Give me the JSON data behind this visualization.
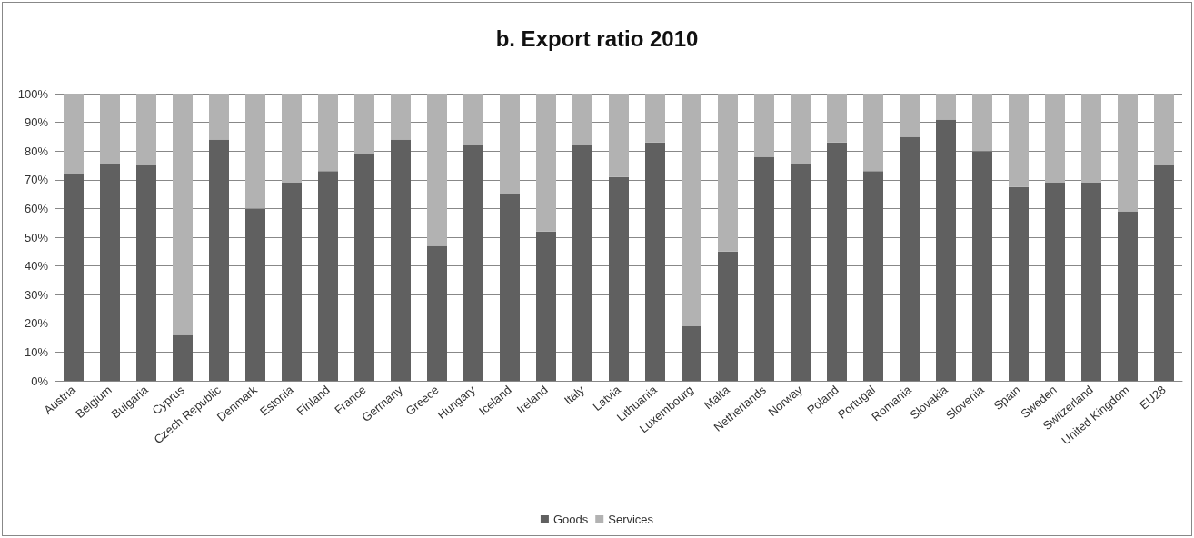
{
  "chart_data": {
    "type": "bar",
    "title": "b. Export ratio 2010",
    "stacked": true,
    "categories": [
      "Austria",
      "Belgium",
      "Bulgaria",
      "Cyprus",
      "Czech Republic",
      "Denmark",
      "Estonia",
      "Finland",
      "France",
      "Germany",
      "Greece",
      "Hungary",
      "Iceland",
      "Ireland",
      "Italy",
      "Latvia",
      "Lithuania",
      "Luxembourg",
      "Malta",
      "Netherlands",
      "Norway",
      "Poland",
      "Portugal",
      "Romania",
      "Slovakia",
      "Slovenia",
      "Spain",
      "Sweden",
      "Switzerland",
      "United Kingdom",
      "EU28"
    ],
    "series": [
      {
        "name": "Goods",
        "color": "#606060",
        "values": [
          72,
          75.5,
          75,
          16,
          84,
          60,
          69,
          73,
          79,
          84,
          47,
          82,
          65,
          52,
          82,
          71,
          83,
          19,
          45,
          78,
          75.5,
          83,
          73,
          85,
          91,
          80,
          67.5,
          69,
          69,
          59,
          75
        ]
      },
      {
        "name": "Services",
        "color": "#b2b2b2",
        "values": [
          28,
          24.5,
          25,
          84,
          16,
          40,
          31,
          27,
          21,
          16,
          53,
          18,
          35,
          48,
          18,
          29,
          17,
          81,
          55,
          22,
          24.5,
          17,
          27,
          15,
          9,
          20,
          32.5,
          31,
          31,
          41,
          25
        ]
      }
    ],
    "ylim": [
      0,
      100
    ],
    "yticks": [
      {
        "value": 0,
        "label": "0%"
      },
      {
        "value": 10,
        "label": "10%"
      },
      {
        "value": 20,
        "label": "20%"
      },
      {
        "value": 30,
        "label": "30%"
      },
      {
        "value": 40,
        "label": "40%"
      },
      {
        "value": 50,
        "label": "50%"
      },
      {
        "value": 60,
        "label": "60%"
      },
      {
        "value": 70,
        "label": "70%"
      },
      {
        "value": 80,
        "label": "80%"
      },
      {
        "value": 90,
        "label": "90%"
      },
      {
        "value": 100,
        "label": "100%"
      }
    ],
    "grid": "y",
    "legend": "bottom"
  }
}
